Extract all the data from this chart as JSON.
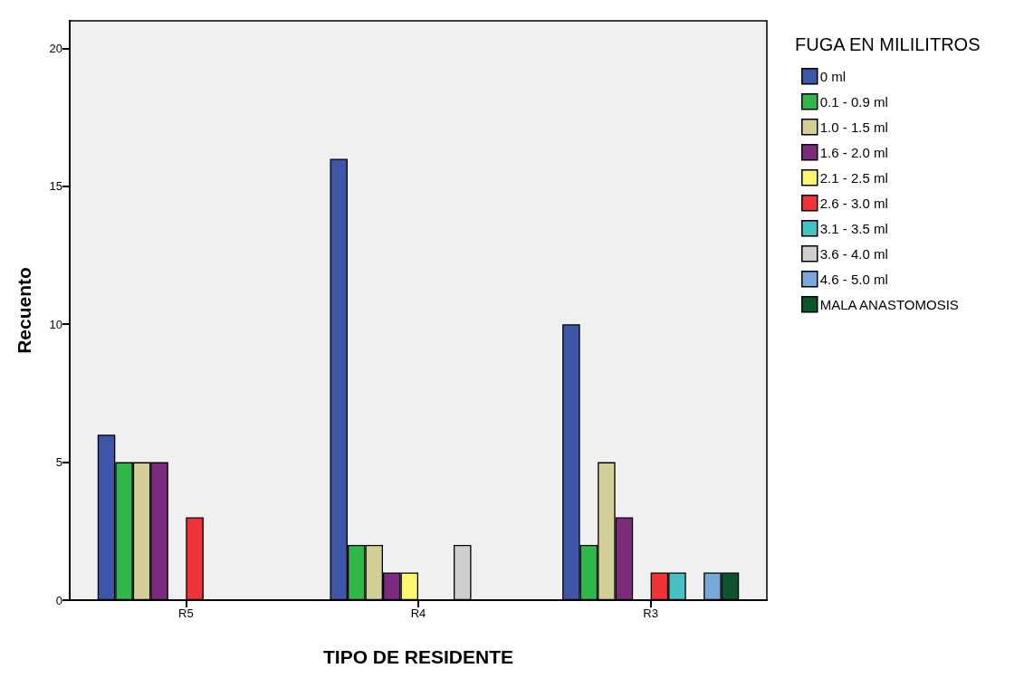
{
  "chart_data": {
    "type": "bar",
    "xlabel": "TIPO DE RESIDENTE",
    "ylabel": "Recuento",
    "legend_title": "FUGA EN MILILITROS",
    "categories": [
      "R5",
      "R4",
      "R3"
    ],
    "series": [
      {
        "name": "0 ml",
        "color": "#3d56a8",
        "values": [
          6,
          16,
          10
        ]
      },
      {
        "name": "0.1 - 0.9 ml",
        "color": "#2fb74a",
        "values": [
          5,
          2,
          2
        ]
      },
      {
        "name": "1.0 - 1.5 ml",
        "color": "#d4cf98",
        "values": [
          5,
          2,
          5
        ]
      },
      {
        "name": "1.6 - 2.0 ml",
        "color": "#7c2a7c",
        "values": [
          5,
          1,
          3
        ]
      },
      {
        "name": "2.1 - 2.5 ml",
        "color": "#fbf86f",
        "values": [
          null,
          1,
          null
        ]
      },
      {
        "name": "2.6 - 3.0 ml",
        "color": "#ef3339",
        "values": [
          3,
          null,
          1
        ]
      },
      {
        "name": "3.1 - 3.5 ml",
        "color": "#47c1c6",
        "values": [
          null,
          null,
          1
        ]
      },
      {
        "name": "3.6 - 4.0 ml",
        "color": "#cfcfcf",
        "values": [
          null,
          2,
          null
        ]
      },
      {
        "name": "4.6 - 5.0 ml",
        "color": "#79a8d8",
        "values": [
          null,
          null,
          1
        ]
      },
      {
        "name": "MALA ANASTOMOSIS",
        "color": "#0b542e",
        "values": [
          null,
          null,
          1
        ]
      }
    ],
    "ylim": [
      0,
      21
    ],
    "yticks": [
      0,
      5,
      10,
      15,
      20
    ],
    "grid": false,
    "legend": "top right"
  }
}
